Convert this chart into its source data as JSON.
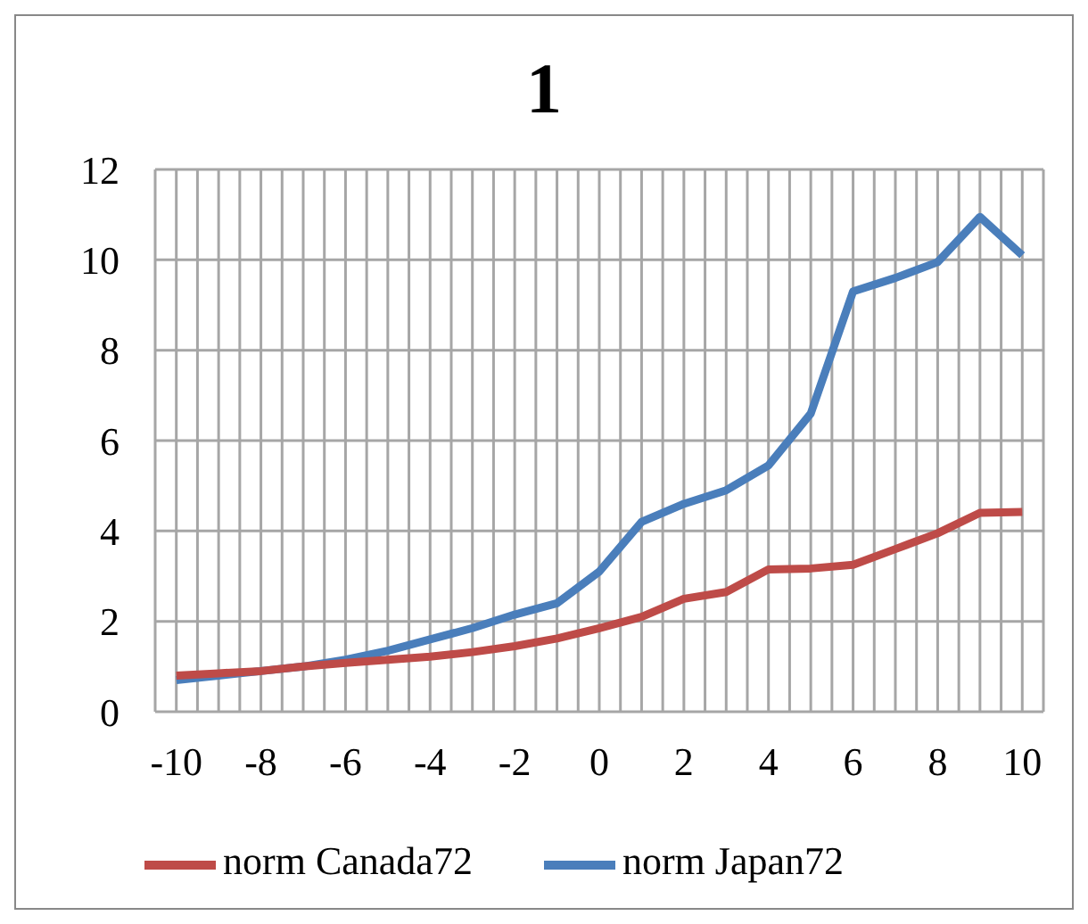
{
  "chart_data": {
    "type": "line",
    "title": "1",
    "x": [
      -10,
      -9,
      -8,
      -7,
      -6,
      -5,
      -4,
      -3,
      -2,
      -1,
      0,
      1,
      2,
      3,
      4,
      5,
      6,
      7,
      8,
      9,
      10
    ],
    "series": [
      {
        "name": "norm Japan72",
        "color": "#4a7ebb",
        "values": [
          0.7,
          0.8,
          0.9,
          1.0,
          1.15,
          1.35,
          1.6,
          1.85,
          2.15,
          2.4,
          3.1,
          4.2,
          4.6,
          4.9,
          5.45,
          6.6,
          9.3,
          9.6,
          9.95,
          10.95,
          10.1
        ]
      },
      {
        "name": "norm Canada72",
        "color": "#be4b48",
        "values": [
          0.8,
          0.85,
          0.9,
          1.0,
          1.08,
          1.15,
          1.22,
          1.32,
          1.45,
          1.62,
          1.85,
          2.1,
          2.5,
          2.65,
          3.15,
          3.17,
          3.25,
          3.6,
          3.95,
          4.4,
          4.42
        ]
      }
    ],
    "xlim": [
      -10.5,
      10.5
    ],
    "xticks": [
      {
        "value": -10.5,
        "label": null
      },
      -10,
      {
        "value": -9.5,
        "label": null
      },
      {
        "value": -9,
        "label": null
      },
      {
        "value": -8.5,
        "label": null
      },
      -8,
      {
        "value": -7.5,
        "label": null
      },
      {
        "value": -7,
        "label": null
      },
      {
        "value": -6.5,
        "label": null
      },
      -6,
      {
        "value": -5.5,
        "label": null
      },
      {
        "value": -5,
        "label": null
      },
      {
        "value": -4.5,
        "label": null
      },
      -4,
      {
        "value": -3.5,
        "label": null
      },
      {
        "value": -3,
        "label": null
      },
      {
        "value": -2.5,
        "label": null
      },
      -2,
      {
        "value": -1.5,
        "label": null
      },
      {
        "value": -1,
        "label": null
      },
      {
        "value": -0.5,
        "label": null
      },
      0,
      {
        "value": 0.5,
        "label": null
      },
      {
        "value": 1,
        "label": null
      },
      {
        "value": 1.5,
        "label": null
      },
      2,
      {
        "value": 2.5,
        "label": null
      },
      {
        "value": 3,
        "label": null
      },
      {
        "value": 3.5,
        "label": null
      },
      4,
      {
        "value": 4.5,
        "label": null
      },
      {
        "value": 5,
        "label": null
      },
      {
        "value": 5.5,
        "label": null
      },
      6,
      {
        "value": 6.5,
        "label": null
      },
      {
        "value": 7,
        "label": null
      },
      {
        "value": 7.5,
        "label": null
      },
      8,
      {
        "value": 8.5,
        "label": null
      },
      {
        "value": 9,
        "label": null
      },
      {
        "value": 9.5,
        "label": null
      },
      10,
      {
        "value": 10.5,
        "label": null
      }
    ],
    "ylim": [
      0,
      12
    ],
    "yticks": [
      0,
      2,
      4,
      6,
      8,
      10,
      12
    ],
    "grid": true,
    "legend": "bottom",
    "marker": "none",
    "line_style": "solid"
  }
}
